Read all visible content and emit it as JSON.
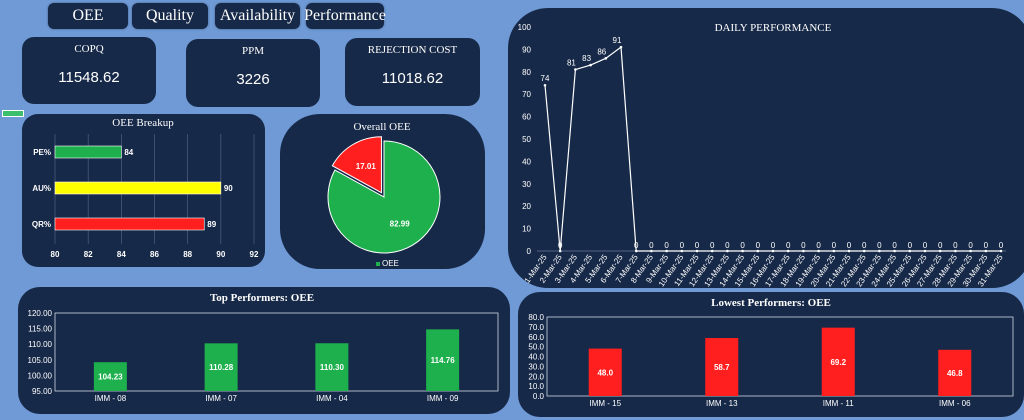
{
  "tabs": [
    {
      "label": "OEE"
    },
    {
      "label": "Quality"
    },
    {
      "label": "Availability"
    },
    {
      "label": "Performance"
    }
  ],
  "kpis": [
    {
      "label": "COPQ",
      "value": "11548.62"
    },
    {
      "label": "PPM",
      "value": "3226"
    },
    {
      "label": "REJECTION COST",
      "value": "11018.62"
    }
  ],
  "colors": {
    "background": "#6f9ad6",
    "panel": "#172948",
    "green": "#1db04d",
    "yellow": "#ffff00",
    "red": "#ff1f1f"
  },
  "chart_data": [
    {
      "type": "bar",
      "orientation": "horizontal",
      "title": "OEE Breakup",
      "categories": [
        "PE%",
        "AU%",
        "QR%"
      ],
      "values": [
        84,
        90,
        89
      ],
      "colors": [
        "#1db04d",
        "#ffff00",
        "#ff1f1f"
      ],
      "xlim": [
        80,
        92
      ],
      "xticks": [
        "80",
        "82",
        "84",
        "86",
        "88",
        "90",
        "92"
      ]
    },
    {
      "type": "pie",
      "title": "Overall OEE",
      "slices": [
        {
          "label": "82.99",
          "value": 82.99,
          "color": "#1db04d"
        },
        {
          "label": "17.01",
          "value": 17.01,
          "color": "#ff1f1f"
        }
      ],
      "legend": [
        "OEE"
      ],
      "legend_position": "bottom"
    },
    {
      "type": "line",
      "title": "DAILY PERFORMANCE",
      "categories": [
        "1-Mar-25",
        "2-Mar-25",
        "3-Mar-25",
        "4-Mar-25",
        "5-Mar-25",
        "6-Mar-25",
        "7-Mar-25",
        "8-Mar-25",
        "9-Mar-25",
        "10-Mar-25",
        "11-Mar-25",
        "12-Mar-25",
        "13-Mar-25",
        "14-Mar-25",
        "15-Mar-25",
        "16-Mar-25",
        "17-Mar-25",
        "18-Mar-25",
        "19-Mar-25",
        "20-Mar-25",
        "21-Mar-25",
        "22-Mar-25",
        "23-Mar-25",
        "24-Mar-25",
        "25-Mar-25",
        "26-Mar-25",
        "27-Mar-25",
        "28-Mar-25",
        "29-Mar-25",
        "30-Mar-25",
        "31-Mar-25"
      ],
      "values": [
        74,
        0,
        81,
        83,
        86,
        91,
        0,
        0,
        0,
        0,
        0,
        0,
        0,
        0,
        0,
        0,
        0,
        0,
        0,
        0,
        0,
        0,
        0,
        0,
        0,
        0,
        0,
        0,
        0,
        0,
        0
      ],
      "data_labels": [
        "74",
        "0",
        "81",
        "83",
        "86",
        "91",
        "0",
        "0",
        "0",
        "0",
        "0",
        "0",
        "0",
        "0",
        "0",
        "0",
        "0",
        "0",
        "0",
        "0",
        "0",
        "0",
        "0",
        "0",
        "0",
        "0",
        "0",
        "0",
        "0",
        "0",
        "0"
      ],
      "ylim": [
        0,
        100
      ],
      "yticks": [
        "0",
        "10",
        "20",
        "30",
        "40",
        "50",
        "60",
        "70",
        "80",
        "90",
        "100"
      ]
    },
    {
      "type": "bar",
      "title": "Top Performers: OEE",
      "categories": [
        "IMM - 08",
        "IMM - 07",
        "IMM - 04",
        "IMM - 09"
      ],
      "values": [
        104.23,
        110.28,
        110.3,
        114.76
      ],
      "data_labels": [
        "104.23",
        "110.28",
        "110.30",
        "114.76"
      ],
      "color": "#1db04d",
      "ylim": [
        95,
        120
      ],
      "yticks": [
        "95.00",
        "100.00",
        "105.00",
        "110.00",
        "115.00",
        "120.00"
      ]
    },
    {
      "type": "bar",
      "title": "Lowest Performers: OEE",
      "categories": [
        "IMM - 15",
        "IMM - 13",
        "IMM - 11",
        "IMM - 06"
      ],
      "values": [
        48.0,
        58.7,
        69.2,
        46.8
      ],
      "data_labels": [
        "48.0",
        "58.7",
        "69.2",
        "46.8"
      ],
      "color": "#ff1f1f",
      "ylim": [
        0,
        80
      ],
      "yticks": [
        "0.0",
        "10.0",
        "20.0",
        "30.0",
        "40.0",
        "50.0",
        "60.0",
        "70.0",
        "80.0"
      ]
    }
  ]
}
